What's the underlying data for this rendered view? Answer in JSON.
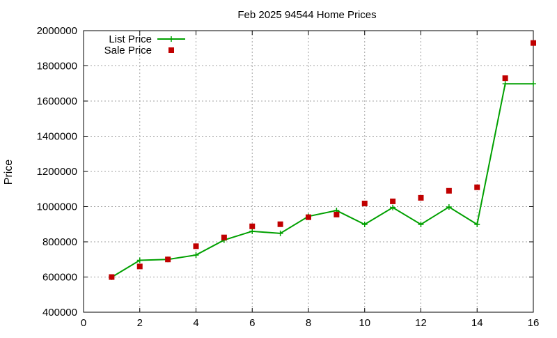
{
  "chart_data": {
    "type": "line",
    "title": "Feb 2025 94544 Home Prices",
    "xlabel": "",
    "ylabel": "Price",
    "xlim": [
      0,
      16
    ],
    "ylim": [
      400000,
      2000000
    ],
    "xticks": [
      0,
      2,
      4,
      6,
      8,
      10,
      12,
      14,
      16
    ],
    "yticks": [
      400000,
      600000,
      800000,
      1000000,
      1200000,
      1400000,
      1600000,
      1800000,
      2000000
    ],
    "grid": true,
    "legend_position": "top-left",
    "series": [
      {
        "name": "List Price",
        "style": "lines+points",
        "marker": "plus",
        "color": "#00a000",
        "x": [
          1,
          2,
          3,
          4,
          5,
          6,
          7,
          8,
          9,
          10,
          11,
          12,
          13,
          14,
          15,
          16
        ],
        "values": [
          599000,
          695000,
          700000,
          725000,
          810000,
          860000,
          848000,
          945000,
          978000,
          899000,
          995000,
          899000,
          998000,
          899000,
          1698000,
          1698000
        ]
      },
      {
        "name": "Sale Price",
        "style": "points",
        "marker": "square",
        "color": "#c00000",
        "x": [
          1,
          2,
          3,
          4,
          5,
          6,
          7,
          8,
          9,
          10,
          11,
          12,
          13,
          14,
          15,
          16
        ],
        "values": [
          600000,
          660000,
          700000,
          775000,
          825000,
          888000,
          900000,
          940000,
          955000,
          1018000,
          1030000,
          1050000,
          1090000,
          1110000,
          1730000,
          1930000
        ]
      }
    ]
  }
}
